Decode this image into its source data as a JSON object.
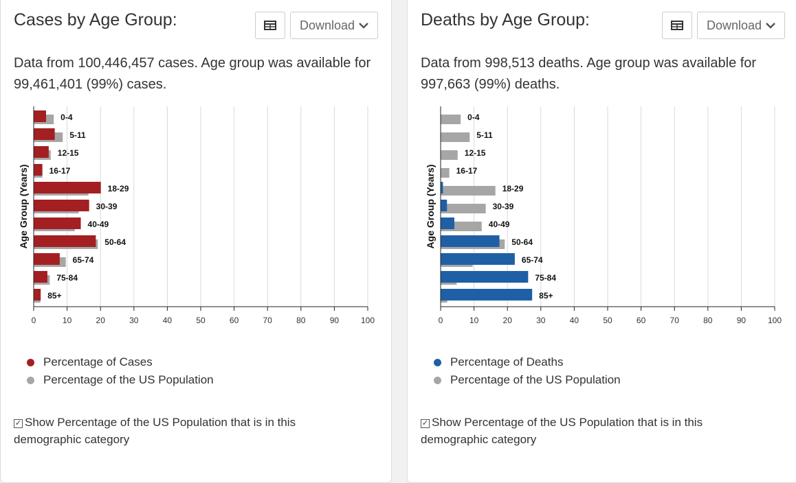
{
  "panels": [
    {
      "title": "Cases by Age Group:",
      "download_label": "Download",
      "desc": "Data from 100,446,457 cases. Age group was available for 99,461,401 (99%) cases.",
      "legend": [
        "Percentage of Cases",
        "Percentage of the US Population"
      ],
      "checkbox_label": "Show Percentage of the US Population that is in this demographic category",
      "checkbox_mark": "✓"
    },
    {
      "title": "Deaths by Age Group:",
      "download_label": "Download",
      "desc": "Data from 998,513 deaths. Age group was available for 997,663 (99%) deaths.",
      "legend": [
        "Percentage of Deaths",
        "Percentage of the US Population"
      ],
      "checkbox_label": "Show Percentage of the US Population that is in this demographic category",
      "checkbox_mark": "✓"
    }
  ],
  "chart_data": [
    {
      "type": "bar",
      "orientation": "horizontal",
      "ylabel": "Age Group (Years)",
      "categories": [
        "0-4",
        "5-11",
        "12-15",
        "16-17",
        "18-29",
        "30-39",
        "40-49",
        "50-64",
        "65-74",
        "75-84",
        "85+"
      ],
      "xlim": [
        0,
        100
      ],
      "xticks": [
        0,
        10,
        20,
        30,
        40,
        50,
        60,
        70,
        80,
        90,
        100
      ],
      "grid": true,
      "series": [
        {
          "name": "Percentage of Cases",
          "color": "#a31f22",
          "values": [
            3.7,
            6.3,
            4.5,
            2.6,
            20.1,
            16.6,
            14.1,
            18.6,
            7.8,
            4.1,
            2.1
          ]
        },
        {
          "name": "Percentage of the US Population",
          "color": "#a6a6a6",
          "values": [
            6.0,
            8.7,
            5.1,
            2.6,
            16.4,
            13.5,
            12.3,
            19.2,
            9.6,
            4.8,
            2.0
          ]
        }
      ]
    },
    {
      "type": "bar",
      "orientation": "horizontal",
      "ylabel": "Age Group (Years)",
      "categories": [
        "0-4",
        "5-11",
        "12-15",
        "16-17",
        "18-29",
        "30-39",
        "40-49",
        "50-64",
        "65-74",
        "75-84",
        "85+"
      ],
      "xlim": [
        0,
        100
      ],
      "xticks": [
        0,
        10,
        20,
        30,
        40,
        50,
        60,
        70,
        80,
        90,
        100
      ],
      "grid": true,
      "series": [
        {
          "name": "Percentage of Deaths",
          "color": "#1f5fa6",
          "values": [
            0.1,
            0.1,
            0.1,
            0.1,
            0.7,
            1.9,
            4.1,
            17.6,
            22.2,
            26.2,
            27.4
          ]
        },
        {
          "name": "Percentage of the US Population",
          "color": "#a6a6a6",
          "values": [
            6.0,
            8.7,
            5.1,
            2.6,
            16.4,
            13.5,
            12.3,
            19.2,
            9.6,
            4.8,
            2.0
          ]
        }
      ]
    }
  ]
}
